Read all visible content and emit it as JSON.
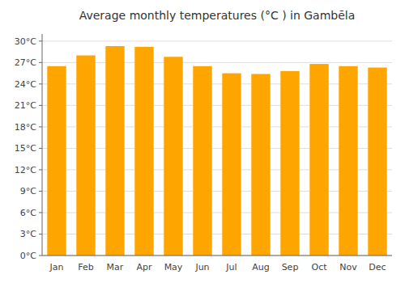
{
  "chart_data": {
    "type": "bar",
    "title": "Average monthly temperatures (°C ) in Gambēla",
    "categories": [
      "Jan",
      "Feb",
      "Mar",
      "Apr",
      "May",
      "Jun",
      "Jul",
      "Aug",
      "Sep",
      "Oct",
      "Nov",
      "Dec"
    ],
    "values": [
      26.5,
      28.0,
      29.3,
      29.2,
      27.8,
      26.5,
      25.5,
      25.4,
      25.8,
      26.8,
      26.5,
      26.3
    ],
    "color": "#FFA500",
    "ylim": [
      0,
      31
    ],
    "yticks": [
      {
        "value": 0,
        "label": "0°C"
      },
      {
        "value": 3,
        "label": "3°C"
      },
      {
        "value": 6,
        "label": "6°C"
      },
      {
        "value": 9,
        "label": "9°C"
      },
      {
        "value": 12,
        "label": "12°C"
      },
      {
        "value": 15,
        "label": "15°C"
      },
      {
        "value": 18,
        "label": "18°C"
      },
      {
        "value": 21,
        "label": "21°C"
      },
      {
        "value": 24,
        "label": "24°C"
      },
      {
        "value": 27,
        "label": "27°C"
      },
      {
        "value": 30,
        "label": "30°C"
      }
    ],
    "grid": true
  }
}
